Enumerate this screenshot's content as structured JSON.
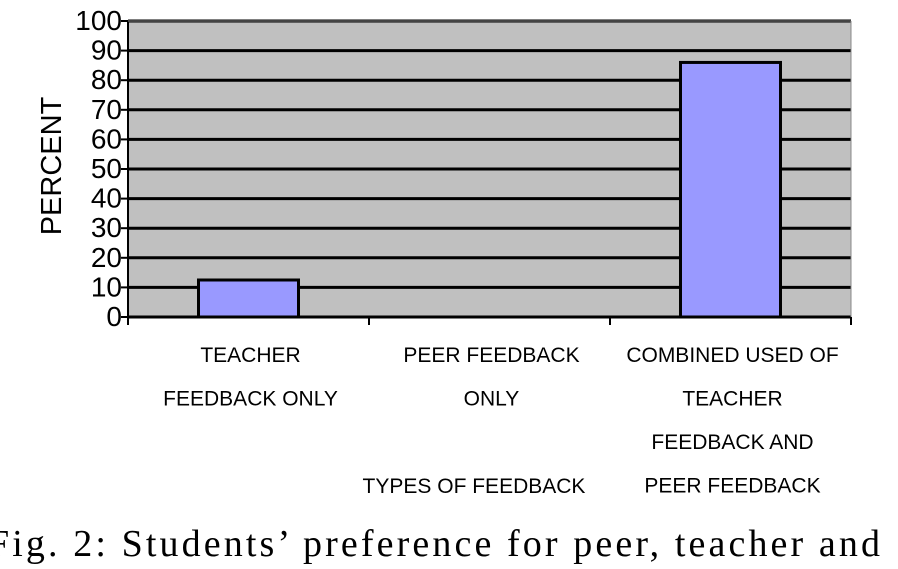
{
  "chart_data": {
    "type": "bar",
    "categories": [
      [
        "TEACHER",
        "FEEDBACK ONLY"
      ],
      [
        "PEER FEEDBACK",
        "ONLY"
      ],
      [
        "COMBINED USED OF",
        "TEACHER",
        "FEEDBACK AND",
        "PEER FEEDBACK"
      ]
    ],
    "values": [
      12.5,
      0,
      86
    ],
    "ylabel": "PERCENT",
    "xlabel": "TYPES OF FEEDBACK",
    "ylim": [
      0,
      100
    ],
    "yticks": [
      "0",
      "10",
      "20",
      "30",
      "40",
      "50",
      "60",
      "70",
      "80",
      "90",
      "100"
    ],
    "grid": true,
    "colors": {
      "plot_bg": "#c0c0c0",
      "bar_fill": "#9999ff",
      "line": "#000000"
    }
  },
  "caption": "Fig. 2: Students’ preference for peer, teacher and"
}
